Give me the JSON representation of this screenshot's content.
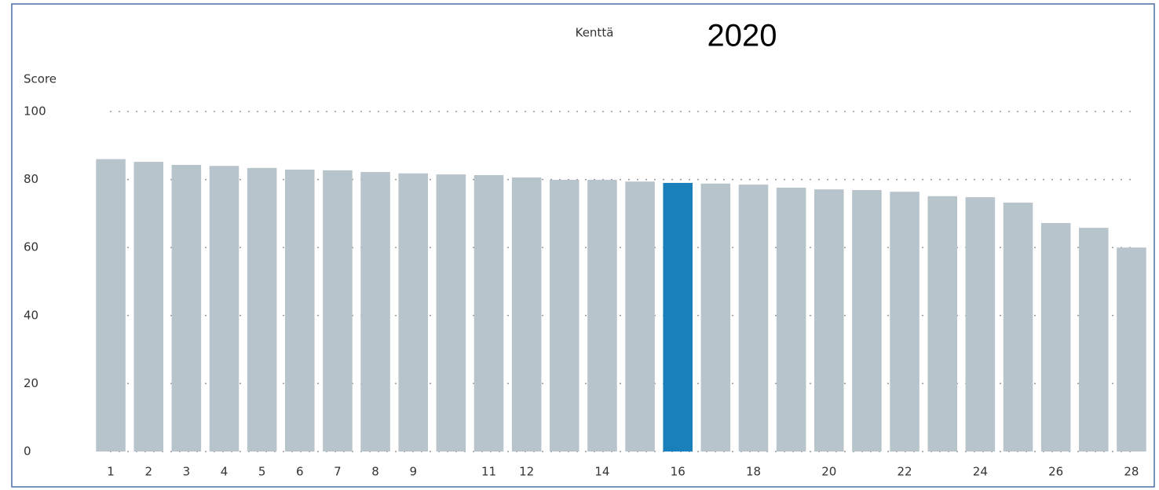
{
  "chart_data": {
    "type": "bar",
    "title": "Kenttä",
    "annotation": "2020",
    "y_label": "Score",
    "categories": [
      "1",
      "2",
      "3",
      "4",
      "5",
      "6",
      "7",
      "8",
      "9",
      null,
      "11",
      "12",
      null,
      "14",
      null,
      "16",
      null,
      "18",
      null,
      "20",
      null,
      "22",
      null,
      "24",
      null,
      "26",
      null,
      "28"
    ],
    "values": [
      86,
      85.2,
      84.3,
      84,
      83.4,
      82.9,
      82.7,
      82.2,
      81.8,
      81.5,
      81.3,
      80.6,
      79.9,
      79.9,
      79.4,
      79,
      78.8,
      78.5,
      77.6,
      77.1,
      76.9,
      76.4,
      75.1,
      74.8,
      73.2,
      67.2,
      65.8,
      60
    ],
    "colors": [
      "#b8c4cc",
      "#b8c4cc",
      "#b8c4cc",
      "#b8c4cc",
      "#b8c4cc",
      "#b8c4cc",
      "#b8c4cc",
      "#b8c4cc",
      "#b8c4cc",
      "#b8c4cc",
      "#b8c4cc",
      "#b8c4cc",
      "#b8c4cc",
      "#b8c4cc",
      "#b8c4cc",
      "#1a80bb",
      "#b8c4cc",
      "#b8c4cc",
      "#b8c4cc",
      "#b8c4cc",
      "#b8c4cc",
      "#b8c4cc",
      "#b8c4cc",
      "#b8c4cc",
      "#b8c4cc",
      "#b8c4cc",
      "#b8c4cc",
      "#b8c4cc"
    ],
    "ylim": [
      0,
      100
    ],
    "yticks": [
      0,
      20,
      40,
      60,
      80,
      100
    ],
    "grid": true
  }
}
